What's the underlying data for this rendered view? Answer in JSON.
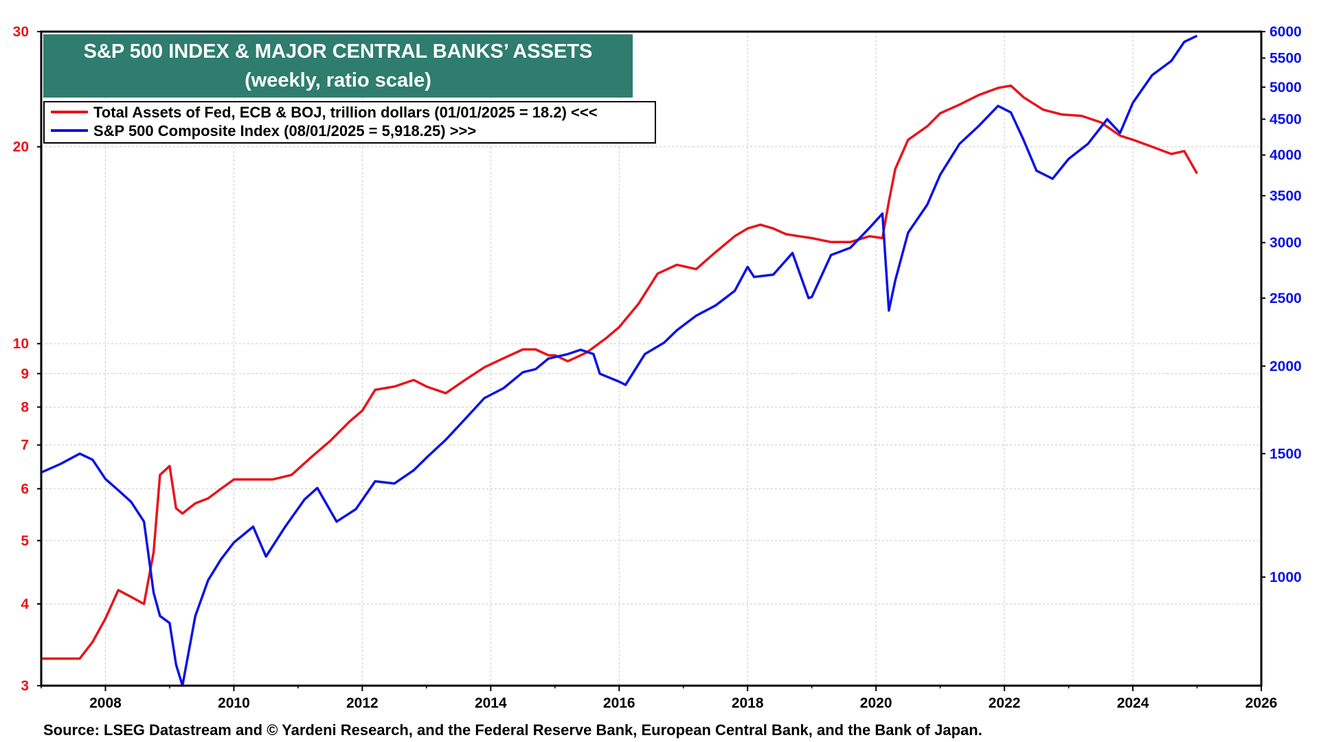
{
  "title": "S&P 500 INDEX & MAJOR CENTRAL BANKS’ ASSETS",
  "subtitle": "(weekly, ratio scale)",
  "source": "Source: LSEG Datastream and © Yardeni Research, and the Federal Reserve Bank, European Central Bank, and the Bank of Japan.",
  "colors": {
    "assets": "#e8141b",
    "spx": "#0a12e6",
    "title_bg": "#2e7d6e"
  },
  "chart_data": {
    "type": "line",
    "y_scale": "log",
    "grid": true,
    "legend_position": "top-left",
    "xlim": [
      2007.0,
      2026.0
    ],
    "x_ticks": [
      "2008",
      "2010",
      "2012",
      "2014",
      "2016",
      "2018",
      "2020",
      "2022",
      "2024",
      "2026"
    ],
    "y_left": {
      "range": [
        3,
        30
      ],
      "ticks": [
        "3",
        "4",
        "5",
        "6",
        "7",
        "8",
        "9",
        "10",
        "20",
        "30"
      ]
    },
    "y_right": {
      "range": [
        700,
        6000
      ],
      "ticks": [
        "1000",
        "1500",
        "2000",
        "2500",
        "3000",
        "3500",
        "4000",
        "4500",
        "5000",
        "5500",
        "6000"
      ]
    },
    "series": [
      {
        "name": "Total Assets of Fed, ECB & BOJ, trillion dollars (01/01/2025 = 18.2) <<<",
        "axis": "left",
        "x": [
          2007.0,
          2007.3,
          2007.6,
          2007.8,
          2008.0,
          2008.2,
          2008.4,
          2008.6,
          2008.75,
          2008.85,
          2009.0,
          2009.1,
          2009.2,
          2009.4,
          2009.6,
          2009.8,
          2010.0,
          2010.3,
          2010.6,
          2010.9,
          2011.2,
          2011.5,
          2011.8,
          2012.0,
          2012.2,
          2012.5,
          2012.8,
          2013.0,
          2013.3,
          2013.6,
          2013.9,
          2014.2,
          2014.5,
          2014.7,
          2014.9,
          2015.0,
          2015.2,
          2015.5,
          2015.8,
          2016.0,
          2016.3,
          2016.6,
          2016.9,
          2017.2,
          2017.5,
          2017.8,
          2018.0,
          2018.2,
          2018.4,
          2018.6,
          2018.8,
          2019.0,
          2019.3,
          2019.6,
          2019.9,
          2020.1,
          2020.2,
          2020.3,
          2020.5,
          2020.8,
          2021.0,
          2021.3,
          2021.6,
          2021.9,
          2022.1,
          2022.3,
          2022.6,
          2022.9,
          2023.2,
          2023.5,
          2023.8,
          2024.0,
          2024.3,
          2024.6,
          2024.8,
          2025.0
        ],
        "values": [
          3.3,
          3.3,
          3.3,
          3.5,
          3.8,
          4.2,
          4.1,
          4.0,
          4.8,
          6.3,
          6.5,
          5.6,
          5.5,
          5.7,
          5.8,
          6.0,
          6.2,
          6.2,
          6.2,
          6.3,
          6.7,
          7.1,
          7.6,
          7.9,
          8.5,
          8.6,
          8.8,
          8.6,
          8.4,
          8.8,
          9.2,
          9.5,
          9.8,
          9.8,
          9.6,
          9.6,
          9.4,
          9.7,
          10.2,
          10.6,
          11.5,
          12.8,
          13.2,
          13.0,
          13.8,
          14.6,
          15.0,
          15.2,
          15.0,
          14.7,
          14.6,
          14.5,
          14.3,
          14.3,
          14.6,
          14.5,
          16.5,
          18.5,
          20.5,
          21.5,
          22.5,
          23.2,
          24.0,
          24.6,
          24.8,
          23.8,
          22.8,
          22.4,
          22.3,
          21.8,
          20.8,
          20.5,
          20.0,
          19.5,
          19.7,
          18.2
        ]
      },
      {
        "name": "S&P 500 Composite Index (08/01/2025 = 5,918.25) >>>",
        "axis": "right",
        "x": [
          2007.0,
          2007.3,
          2007.6,
          2007.8,
          2008.0,
          2008.2,
          2008.4,
          2008.6,
          2008.75,
          2008.85,
          2009.0,
          2009.1,
          2009.2,
          2009.4,
          2009.6,
          2009.8,
          2010.0,
          2010.3,
          2010.5,
          2010.8,
          2011.1,
          2011.3,
          2011.6,
          2011.9,
          2012.2,
          2012.5,
          2012.8,
          2013.0,
          2013.3,
          2013.6,
          2013.9,
          2014.2,
          2014.5,
          2014.7,
          2014.9,
          2015.2,
          2015.4,
          2015.6,
          2015.7,
          2016.0,
          2016.1,
          2016.4,
          2016.7,
          2016.9,
          2017.2,
          2017.5,
          2017.8,
          2018.0,
          2018.1,
          2018.4,
          2018.7,
          2018.95,
          2019.0,
          2019.3,
          2019.6,
          2019.9,
          2020.1,
          2020.2,
          2020.3,
          2020.5,
          2020.8,
          2021.0,
          2021.3,
          2021.6,
          2021.9,
          2022.1,
          2022.3,
          2022.5,
          2022.75,
          2023.0,
          2023.3,
          2023.6,
          2023.8,
          2024.0,
          2024.3,
          2024.6,
          2024.8,
          2025.0
        ],
        "values": [
          1410,
          1450,
          1500,
          1470,
          1380,
          1330,
          1280,
          1200,
          950,
          880,
          860,
          750,
          700,
          880,
          990,
          1060,
          1120,
          1180,
          1070,
          1180,
          1290,
          1340,
          1200,
          1250,
          1370,
          1360,
          1420,
          1480,
          1570,
          1680,
          1800,
          1860,
          1960,
          1980,
          2050,
          2080,
          2110,
          2080,
          1950,
          1900,
          1880,
          2080,
          2160,
          2250,
          2360,
          2440,
          2560,
          2770,
          2680,
          2700,
          2900,
          2500,
          2510,
          2880,
          2950,
          3150,
          3300,
          2400,
          2650,
          3100,
          3400,
          3750,
          4150,
          4400,
          4700,
          4600,
          4200,
          3800,
          3700,
          3950,
          4150,
          4500,
          4300,
          4750,
          5200,
          5450,
          5800,
          5918
        ]
      }
    ]
  }
}
